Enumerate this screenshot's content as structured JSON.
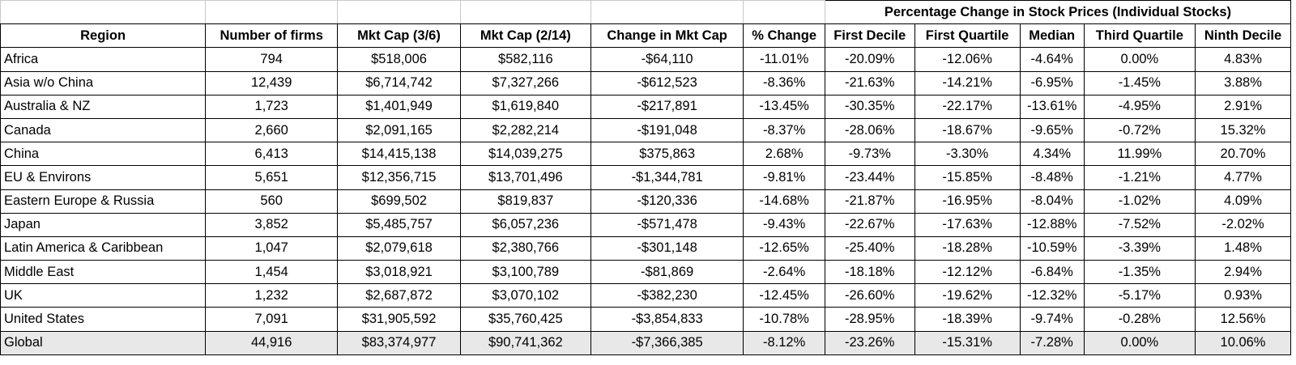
{
  "super_header": "Percentage Change in Stock Prices (Individual Stocks)",
  "columns": [
    "Region",
    "Number of firms",
    "Mkt Cap (3/6)",
    "Mkt Cap (2/14)",
    "Change in Mkt Cap",
    "% Change",
    "First Decile",
    "First Quartile",
    "Median",
    "Third Quartile",
    "Ninth Decile"
  ],
  "rows": [
    [
      "Africa",
      "794",
      "$518,006",
      "$582,116",
      "-$64,110",
      "-11.01%",
      "-20.09%",
      "-12.06%",
      "-4.64%",
      "0.00%",
      "4.83%"
    ],
    [
      "Asia w/o China",
      "12,439",
      "$6,714,742",
      "$7,327,266",
      "-$612,523",
      "-8.36%",
      "-21.63%",
      "-14.21%",
      "-6.95%",
      "-1.45%",
      "3.88%"
    ],
    [
      "Australia & NZ",
      "1,723",
      "$1,401,949",
      "$1,619,840",
      "-$217,891",
      "-13.45%",
      "-30.35%",
      "-22.17%",
      "-13.61%",
      "-4.95%",
      "2.91%"
    ],
    [
      "Canada",
      "2,660",
      "$2,091,165",
      "$2,282,214",
      "-$191,048",
      "-8.37%",
      "-28.06%",
      "-18.67%",
      "-9.65%",
      "-0.72%",
      "15.32%"
    ],
    [
      "China",
      "6,413",
      "$14,415,138",
      "$14,039,275",
      "$375,863",
      "2.68%",
      "-9.73%",
      "-3.30%",
      "4.34%",
      "11.99%",
      "20.70%"
    ],
    [
      "EU & Environs",
      "5,651",
      "$12,356,715",
      "$13,701,496",
      "-$1,344,781",
      "-9.81%",
      "-23.44%",
      "-15.85%",
      "-8.48%",
      "-1.21%",
      "4.77%"
    ],
    [
      "Eastern Europe & Russia",
      "560",
      "$699,502",
      "$819,837",
      "-$120,336",
      "-14.68%",
      "-21.87%",
      "-16.95%",
      "-8.04%",
      "-1.02%",
      "4.09%"
    ],
    [
      "Japan",
      "3,852",
      "$5,485,757",
      "$6,057,236",
      "-$571,478",
      "-9.43%",
      "-22.67%",
      "-17.63%",
      "-12.88%",
      "-7.52%",
      "-2.02%"
    ],
    [
      "Latin America & Caribbean",
      "1,047",
      "$2,079,618",
      "$2,380,766",
      "-$301,148",
      "-12.65%",
      "-25.40%",
      "-18.28%",
      "-10.59%",
      "-3.39%",
      "1.48%"
    ],
    [
      "Middle East",
      "1,454",
      "$3,018,921",
      "$3,100,789",
      "-$81,869",
      "-2.64%",
      "-18.18%",
      "-12.12%",
      "-6.84%",
      "-1.35%",
      "2.94%"
    ],
    [
      "UK",
      "1,232",
      "$2,687,872",
      "$3,070,102",
      "-$382,230",
      "-12.45%",
      "-26.60%",
      "-19.62%",
      "-12.32%",
      "-5.17%",
      "0.93%"
    ],
    [
      "United States",
      "7,091",
      "$31,905,592",
      "$35,760,425",
      "-$3,854,833",
      "-10.78%",
      "-28.95%",
      "-18.39%",
      "-9.74%",
      "-0.28%",
      "12.56%"
    ]
  ],
  "global_row": [
    "Global",
    "44,916",
    "$83,374,977",
    "$90,741,362",
    "-$7,366,385",
    "-8.12%",
    "-23.26%",
    "-15.31%",
    "-7.28%",
    "0.00%",
    "10.06%"
  ],
  "colors": {
    "global_row_bg": "#e8e8e8",
    "grid_border": "#000000"
  }
}
